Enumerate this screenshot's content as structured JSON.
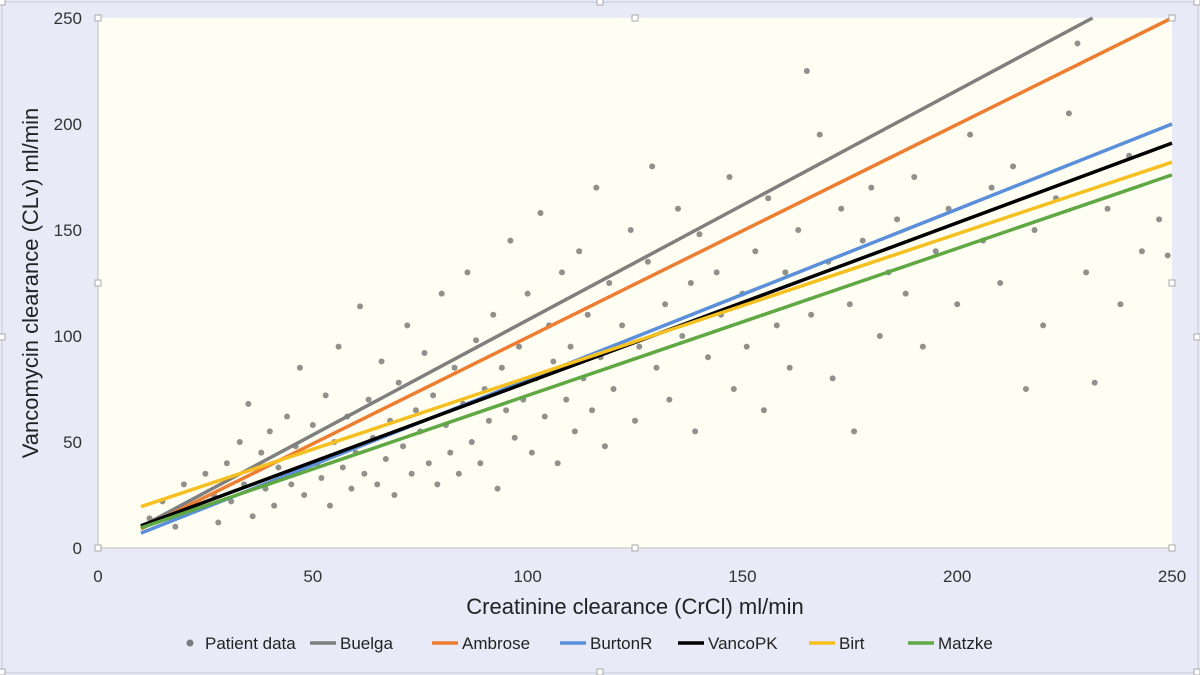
{
  "chart_data": {
    "type": "scatter",
    "title": "",
    "xlabel": "Creatinine clearance (CrCl) ml/min",
    "ylabel": "Vancomycin clearance (CLv) ml/min",
    "xlim": [
      0,
      250
    ],
    "ylim": [
      0,
      250
    ],
    "xticks": [
      "0",
      "50",
      "100",
      "150",
      "200",
      "250"
    ],
    "yticks": [
      "0",
      "50",
      "100",
      "150",
      "200",
      "250"
    ],
    "grid": false,
    "legend_position": "bottom",
    "scatter": {
      "name": "Patient data",
      "color": "#555555",
      "points": [
        [
          12,
          14
        ],
        [
          15,
          22
        ],
        [
          18,
          10
        ],
        [
          20,
          30
        ],
        [
          22,
          18
        ],
        [
          25,
          35
        ],
        [
          27,
          25
        ],
        [
          28,
          12
        ],
        [
          30,
          40
        ],
        [
          31,
          22
        ],
        [
          33,
          50
        ],
        [
          34,
          30
        ],
        [
          35,
          68
        ],
        [
          36,
          15
        ],
        [
          38,
          45
        ],
        [
          39,
          28
        ],
        [
          40,
          55
        ],
        [
          41,
          20
        ],
        [
          42,
          38
        ],
        [
          44,
          62
        ],
        [
          45,
          30
        ],
        [
          46,
          48
        ],
        [
          47,
          85
        ],
        [
          48,
          25
        ],
        [
          50,
          58
        ],
        [
          51,
          40
        ],
        [
          52,
          33
        ],
        [
          53,
          72
        ],
        [
          54,
          20
        ],
        [
          55,
          50
        ],
        [
          56,
          95
        ],
        [
          57,
          38
        ],
        [
          58,
          62
        ],
        [
          59,
          28
        ],
        [
          60,
          45
        ],
        [
          61,
          114
        ],
        [
          62,
          35
        ],
        [
          63,
          70
        ],
        [
          64,
          52
        ],
        [
          65,
          30
        ],
        [
          66,
          88
        ],
        [
          67,
          42
        ],
        [
          68,
          60
        ],
        [
          69,
          25
        ],
        [
          70,
          78
        ],
        [
          71,
          48
        ],
        [
          72,
          105
        ],
        [
          73,
          35
        ],
        [
          74,
          65
        ],
        [
          75,
          55
        ],
        [
          76,
          92
        ],
        [
          77,
          40
        ],
        [
          78,
          72
        ],
        [
          79,
          30
        ],
        [
          80,
          120
        ],
        [
          81,
          58
        ],
        [
          82,
          45
        ],
        [
          83,
          85
        ],
        [
          84,
          35
        ],
        [
          85,
          68
        ],
        [
          86,
          130
        ],
        [
          87,
          50
        ],
        [
          88,
          98
        ],
        [
          89,
          40
        ],
        [
          90,
          75
        ],
        [
          91,
          60
        ],
        [
          92,
          110
        ],
        [
          93,
          28
        ],
        [
          94,
          85
        ],
        [
          95,
          65
        ],
        [
          96,
          145
        ],
        [
          97,
          52
        ],
        [
          98,
          95
        ],
        [
          99,
          70
        ],
        [
          100,
          120
        ],
        [
          101,
          45
        ],
        [
          102,
          80
        ],
        [
          103,
          158
        ],
        [
          104,
          62
        ],
        [
          105,
          105
        ],
        [
          106,
          88
        ],
        [
          107,
          40
        ],
        [
          108,
          130
        ],
        [
          109,
          70
        ],
        [
          110,
          95
        ],
        [
          111,
          55
        ],
        [
          112,
          140
        ],
        [
          113,
          80
        ],
        [
          114,
          110
        ],
        [
          115,
          65
        ],
        [
          116,
          170
        ],
        [
          117,
          90
        ],
        [
          118,
          48
        ],
        [
          119,
          125
        ],
        [
          120,
          75
        ],
        [
          122,
          105
        ],
        [
          124,
          150
        ],
        [
          125,
          60
        ],
        [
          126,
          95
        ],
        [
          128,
          135
        ],
        [
          129,
          180
        ],
        [
          130,
          85
        ],
        [
          132,
          115
        ],
        [
          133,
          70
        ],
        [
          135,
          160
        ],
        [
          136,
          100
        ],
        [
          138,
          125
        ],
        [
          139,
          55
        ],
        [
          140,
          148
        ],
        [
          142,
          90
        ],
        [
          144,
          130
        ],
        [
          145,
          110
        ],
        [
          147,
          175
        ],
        [
          148,
          75
        ],
        [
          150,
          120
        ],
        [
          151,
          95
        ],
        [
          153,
          140
        ],
        [
          155,
          65
        ],
        [
          156,
          165
        ],
        [
          158,
          105
        ],
        [
          160,
          130
        ],
        [
          161,
          85
        ],
        [
          163,
          150
        ],
        [
          165,
          225
        ],
        [
          166,
          110
        ],
        [
          168,
          195
        ],
        [
          170,
          135
        ],
        [
          171,
          80
        ],
        [
          173,
          160
        ],
        [
          175,
          115
        ],
        [
          176,
          55
        ],
        [
          178,
          145
        ],
        [
          180,
          170
        ],
        [
          182,
          100
        ],
        [
          184,
          130
        ],
        [
          186,
          155
        ],
        [
          188,
          120
        ],
        [
          190,
          175
        ],
        [
          192,
          95
        ],
        [
          195,
          140
        ],
        [
          198,
          160
        ],
        [
          200,
          115
        ],
        [
          203,
          195
        ],
        [
          206,
          145
        ],
        [
          208,
          170
        ],
        [
          210,
          125
        ],
        [
          213,
          180
        ],
        [
          216,
          75
        ],
        [
          218,
          150
        ],
        [
          220,
          105
        ],
        [
          223,
          165
        ],
        [
          226,
          205
        ],
        [
          228,
          238
        ],
        [
          230,
          130
        ],
        [
          232,
          78
        ],
        [
          235,
          160
        ],
        [
          238,
          115
        ],
        [
          240,
          185
        ],
        [
          243,
          140
        ],
        [
          247,
          155
        ],
        [
          249,
          138
        ]
      ]
    },
    "series": [
      {
        "name": "Buelga",
        "color": "#7f7f7f",
        "x": [
          10,
          231.5
        ],
        "y": [
          10,
          250
        ]
      },
      {
        "name": "Ambrose",
        "color": "#ed7d31",
        "x": [
          10,
          250
        ],
        "y": [
          9,
          250
        ]
      },
      {
        "name": "BurtonR",
        "color": "#5b8fd9",
        "x": [
          10,
          250
        ],
        "y": [
          7,
          200
        ]
      },
      {
        "name": "VancoPK",
        "color": "#000000",
        "x": [
          10,
          250
        ],
        "y": [
          10.5,
          191
        ]
      },
      {
        "name": "Birt",
        "color": "#f5c020",
        "x": [
          10,
          250
        ],
        "y": [
          19.5,
          182
        ]
      },
      {
        "name": "Matzke",
        "color": "#5fa843",
        "x": [
          10,
          250
        ],
        "y": [
          9.5,
          176
        ]
      }
    ]
  }
}
